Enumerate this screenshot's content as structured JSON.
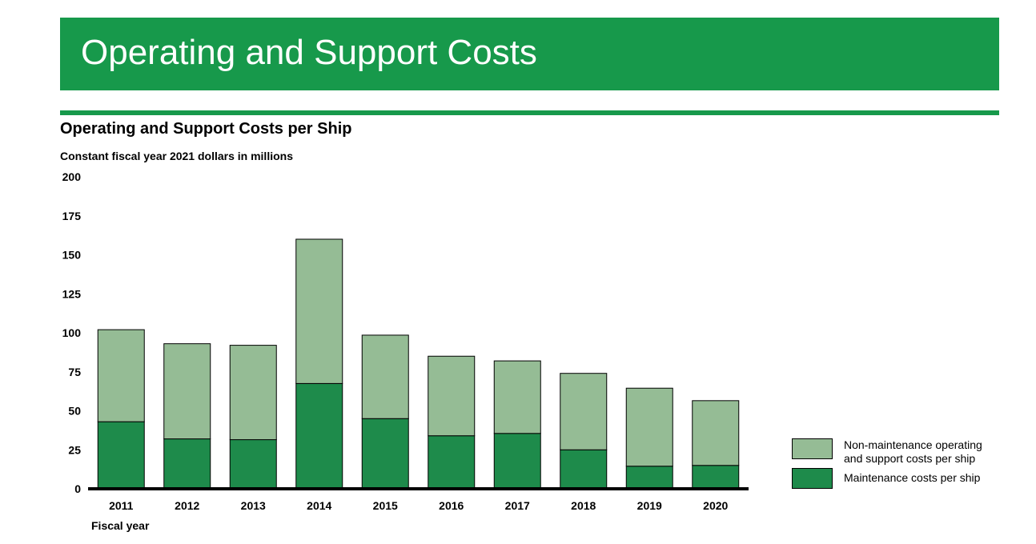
{
  "header": {
    "title": "Operating and Support Costs",
    "banner_color": "#17994B"
  },
  "chart_data": {
    "type": "bar",
    "stacked": true,
    "title": "Operating and Support Costs per Ship",
    "ylabel": "Constant fiscal year 2021 dollars in millions",
    "xlabel": "Fiscal year",
    "ylim": [
      0,
      200
    ],
    "yticks": [
      "0",
      "25",
      "50",
      "75",
      "100",
      "125",
      "150",
      "175",
      "200"
    ],
    "grid": false,
    "legend_position": "right",
    "categories": [
      "2011",
      "2012",
      "2013",
      "2014",
      "2015",
      "2016",
      "2017",
      "2018",
      "2019",
      "2020"
    ],
    "series": [
      {
        "name": "Maintenance costs per ship",
        "color": "#1E8B4B",
        "values": [
          43,
          32,
          31.5,
          67.5,
          45,
          34,
          35.5,
          25,
          14.5,
          15
        ]
      },
      {
        "name": "Non-maintenance operating and support costs per ship",
        "color": "#95BC95",
        "values": [
          59,
          61,
          60.5,
          92.5,
          53.5,
          51,
          46.5,
          49,
          50,
          41.5
        ]
      }
    ]
  }
}
